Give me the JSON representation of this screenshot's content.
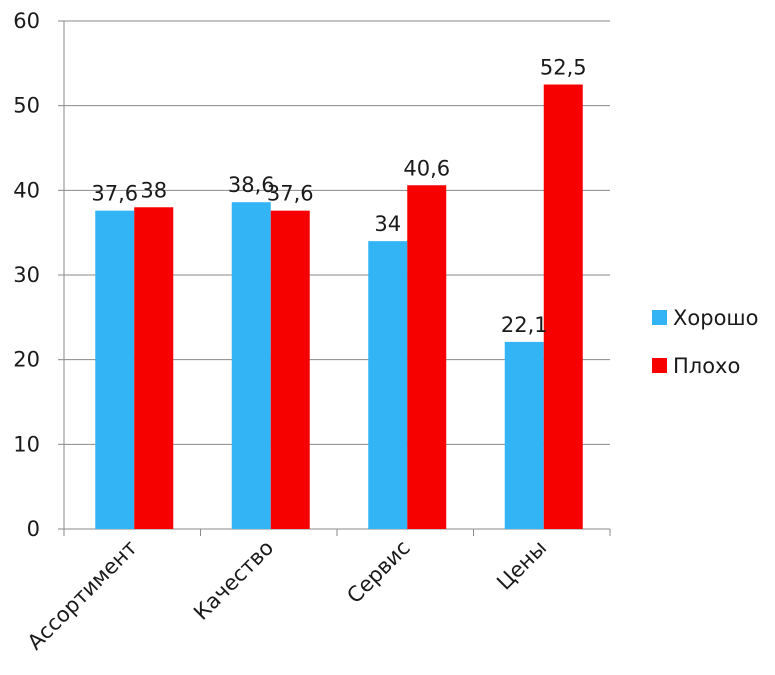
{
  "chart_data": {
    "type": "bar",
    "categories": [
      "Ассортимент",
      "Качество",
      "Сервис",
      "Цены"
    ],
    "series": [
      {
        "name": "Хорошо",
        "values": [
          37.6,
          38.6,
          34,
          22.1
        ],
        "labels": [
          "37,6",
          "38,6",
          "34",
          "22,1"
        ],
        "color": "#33b5f5"
      },
      {
        "name": "Плохо",
        "values": [
          38,
          37.6,
          40.6,
          52.5
        ],
        "labels": [
          "38",
          "37,6",
          "40,6",
          "52,5"
        ],
        "color": "#f60000"
      }
    ],
    "ylim": [
      0,
      60
    ],
    "yticks": [
      0,
      10,
      20,
      30,
      40,
      50,
      60
    ],
    "grid": true,
    "legend_position": "right"
  }
}
